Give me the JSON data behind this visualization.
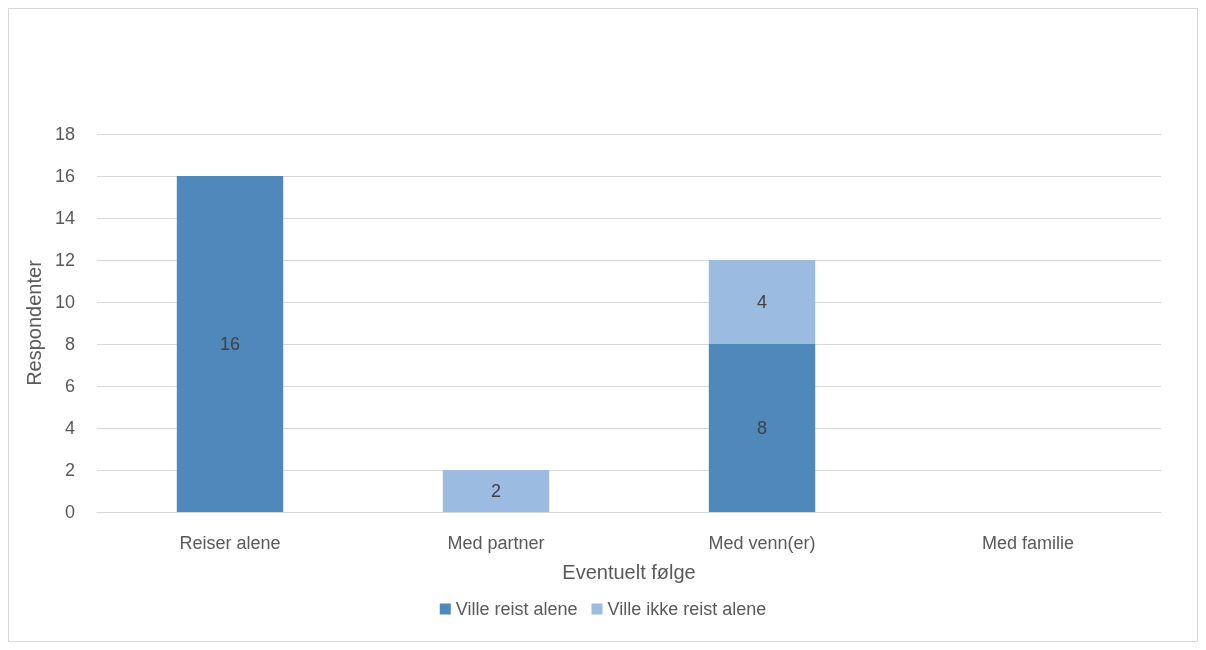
{
  "chart_data": {
    "type": "bar",
    "stacked": true,
    "xlabel": "Eventuelt følge",
    "ylabel": "Respondenter",
    "categories": [
      "Reiser alene",
      "Med partner",
      "Med venn(er)",
      "Med familie"
    ],
    "series": [
      {
        "name": "Ville reist alene",
        "color": "#4f88bb",
        "values": [
          16,
          null,
          8,
          null
        ]
      },
      {
        "name": "Ville ikke reist alene",
        "color": "#9bbbe0",
        "values": [
          null,
          2,
          4,
          null
        ]
      }
    ],
    "ylim": [
      0,
      18
    ],
    "yticks": [
      0,
      2,
      4,
      6,
      8,
      10,
      12,
      14,
      16,
      18
    ],
    "grid": "y",
    "legend": "bottom",
    "data_labels": true
  }
}
